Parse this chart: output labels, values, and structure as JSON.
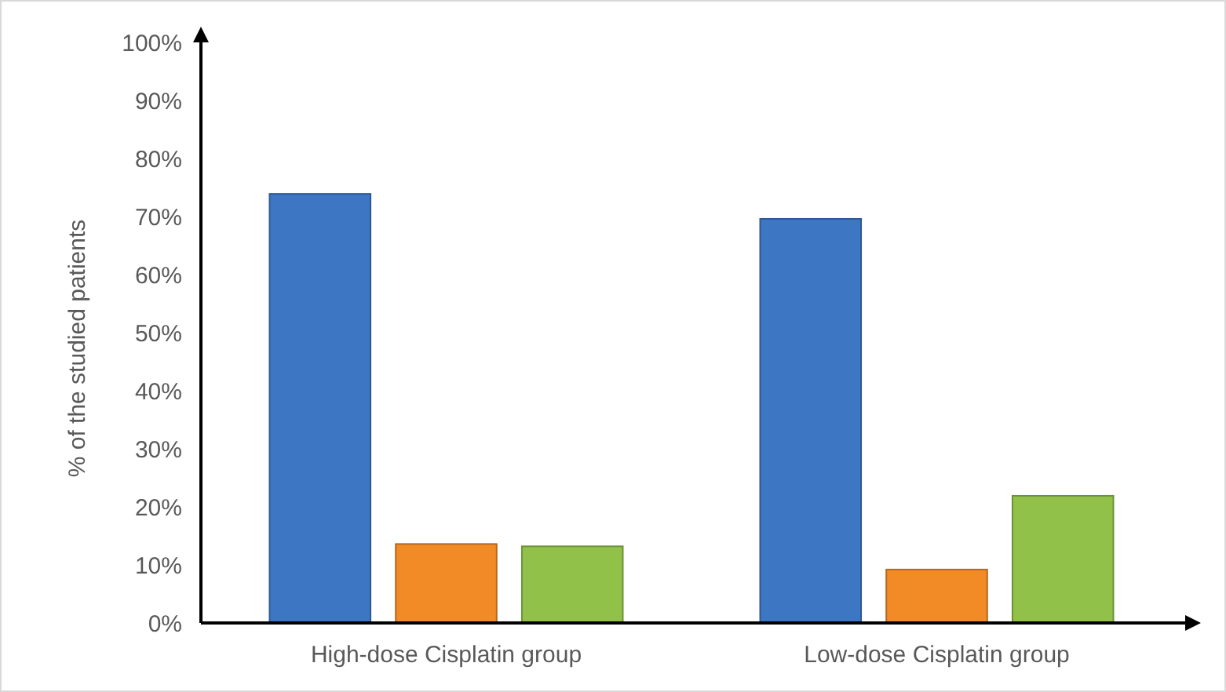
{
  "chart_data": {
    "type": "bar",
    "ylabel": "% of the studied patients",
    "categories": [
      "High-dose Cisplatin group",
      "Low-dose Cisplatin group"
    ],
    "series": [
      {
        "color": "#3d77c4",
        "values": [
          73.9,
          69.6
        ]
      },
      {
        "color": "#f28a26",
        "values": [
          13.6,
          9.2
        ]
      },
      {
        "color": "#92c14a",
        "values": [
          13.2,
          21.9
        ]
      }
    ],
    "ylim": [
      0,
      100
    ],
    "yticks": [
      {
        "value": 0,
        "label": "0%"
      },
      {
        "value": 10,
        "label": "10%"
      },
      {
        "value": 20,
        "label": "20%"
      },
      {
        "value": 30,
        "label": "30%"
      },
      {
        "value": 40,
        "label": "40%"
      },
      {
        "value": 50,
        "label": "50%"
      },
      {
        "value": 60,
        "label": "60%"
      },
      {
        "value": 70,
        "label": "70%"
      },
      {
        "value": 80,
        "label": "80%"
      },
      {
        "value": 90,
        "label": "90%"
      },
      {
        "value": 100,
        "label": "100%"
      }
    ],
    "grid": false
  }
}
